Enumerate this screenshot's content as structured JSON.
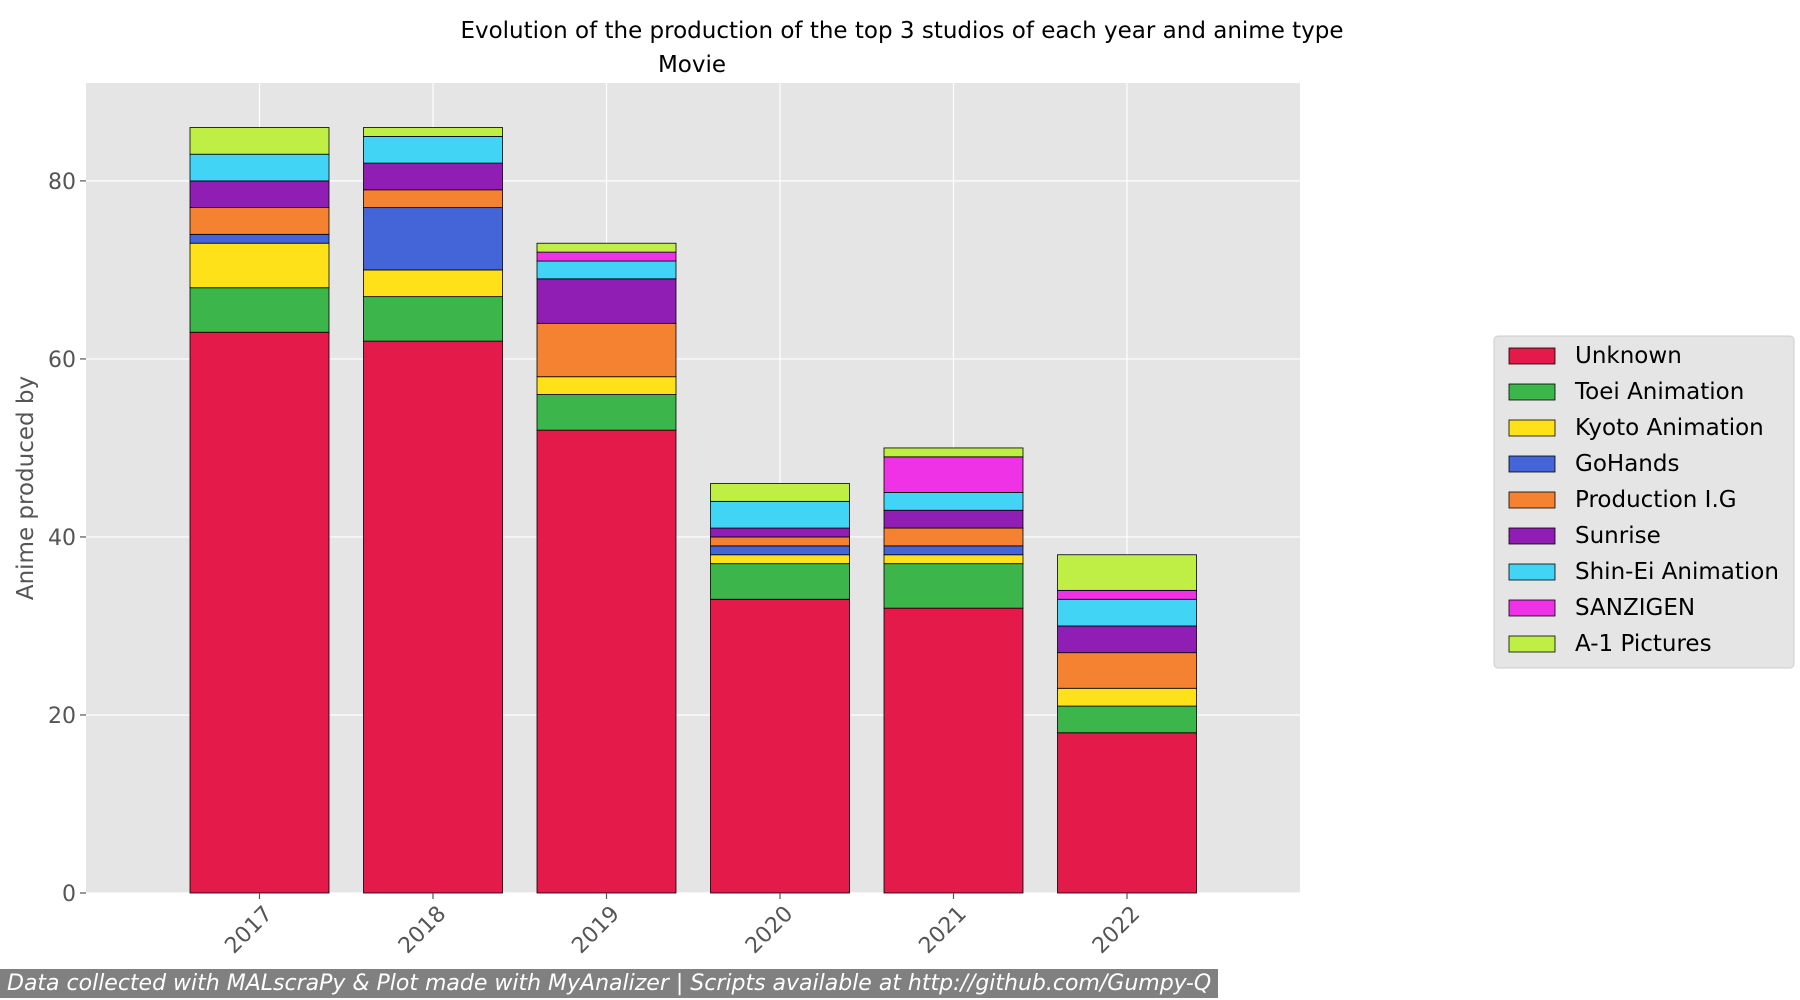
{
  "chart_data": {
    "type": "bar",
    "stacked": true,
    "title": "Evolution of the production of the top 3 studios of each year and anime type",
    "subtitle": "Movie",
    "xlabel": "",
    "ylabel": "Anime produced by",
    "ylim": [
      0,
      91
    ],
    "yticks": [
      0,
      20,
      40,
      60,
      80
    ],
    "grid": true,
    "legend_position": "right",
    "categories": [
      "2017",
      "2018",
      "2019",
      "2020",
      "2021",
      "2022"
    ],
    "series": [
      {
        "name": "Unknown",
        "color": "#e31a4a",
        "values": [
          63,
          62,
          52,
          33,
          32,
          18
        ]
      },
      {
        "name": "Toei Animation",
        "color": "#3cb54a",
        "values": [
          5,
          5,
          4,
          4,
          5,
          3
        ]
      },
      {
        "name": "Kyoto Animation",
        "color": "#ffe11a",
        "values": [
          5,
          3,
          2,
          1,
          1,
          2
        ]
      },
      {
        "name": "GoHands",
        "color": "#4365d8",
        "values": [
          1,
          7,
          0,
          1,
          1,
          0
        ]
      },
      {
        "name": "Production I.G",
        "color": "#f58231",
        "values": [
          3,
          2,
          6,
          1,
          2,
          4
        ]
      },
      {
        "name": "Sunrise",
        "color": "#911eb4",
        "values": [
          3,
          3,
          5,
          1,
          2,
          3
        ]
      },
      {
        "name": "Shin-Ei Animation",
        "color": "#42d4f4",
        "values": [
          3,
          3,
          2,
          3,
          2,
          3
        ]
      },
      {
        "name": "SANZIGEN",
        "color": "#f032e6",
        "values": [
          0,
          0,
          1,
          0,
          4,
          1
        ]
      },
      {
        "name": "A-1 Pictures",
        "color": "#bfef45",
        "values": [
          3,
          1,
          1,
          2,
          1,
          4
        ]
      }
    ]
  },
  "footer": {
    "text": "Data collected with MALscraPy & Plot made with MyAnalizer | Scripts available at http://github.com/Gumpy-Q"
  }
}
